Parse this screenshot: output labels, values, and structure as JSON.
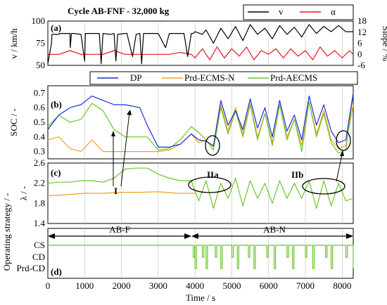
{
  "figure_title": "Cycle AB-FNF - 32,000 kg",
  "xlabel": "Time / s",
  "colors": {
    "v": "#000000",
    "alpha": "#e8141e",
    "dp": "#1c2fd6",
    "ecms": "#f0a21b",
    "aecms": "#6cc42a"
  },
  "chart_data": [
    {
      "panel": "(a)",
      "type": "line",
      "xlim": [
        0,
        8300
      ],
      "ylim": [
        50,
        100
      ],
      "y2lim": [
        -6,
        18
      ],
      "yticks": [
        "50",
        "75",
        "100"
      ],
      "y2ticks": [
        "-6",
        "0",
        "6",
        "12",
        "18"
      ],
      "ylabel": "v / km/h",
      "y2label": "Slope / %",
      "legend": {
        "placement": "top-right",
        "entries": [
          "v",
          "α"
        ]
      },
      "series": [
        {
          "name": "v",
          "axis": "left",
          "x": [
            0,
            100,
            110,
            300,
            320,
            600,
            610,
            640,
            700,
            900,
            1000,
            1020,
            1100,
            1300,
            1400,
            1450,
            1500,
            1700,
            1800,
            1850,
            1900,
            2100,
            2150,
            2300,
            2400,
            2500,
            2550,
            2600,
            2700,
            2800,
            2900,
            3000,
            3200,
            3300,
            3500,
            3700,
            3800,
            3900,
            3950,
            4000,
            4200,
            4300,
            4500,
            4700,
            4900,
            5100,
            5300,
            5500,
            5700,
            5900,
            6100,
            6300,
            6500,
            6700,
            6900,
            7100,
            7300,
            7500,
            7700,
            7900,
            8100,
            8300
          ],
          "values": [
            52,
            75,
            85,
            85,
            86,
            86,
            70,
            86,
            86,
            85,
            55,
            86,
            86,
            86,
            86,
            52,
            86,
            85,
            86,
            55,
            85,
            86,
            86,
            60,
            85,
            86,
            52,
            86,
            86,
            86,
            86,
            86,
            70,
            86,
            86,
            86,
            60,
            86,
            86,
            88,
            85,
            90,
            75,
            92,
            80,
            94,
            78,
            96,
            85,
            92,
            80,
            95,
            85,
            93,
            82,
            96,
            86,
            94,
            88,
            95,
            88,
            88
          ]
        },
        {
          "name": "α",
          "axis": "right",
          "x": [
            0,
            300,
            600,
            900,
            1200,
            1500,
            1800,
            2100,
            2400,
            2700,
            3000,
            3300,
            3600,
            3900,
            4000,
            4200,
            4400,
            4600,
            4800,
            5000,
            5200,
            5400,
            5600,
            5800,
            6000,
            6200,
            6400,
            6600,
            6800,
            7000,
            7200,
            7400,
            7600,
            7800,
            8000,
            8200,
            8300
          ],
          "values": [
            0,
            0,
            2,
            0,
            0,
            0,
            2,
            0,
            0,
            0,
            0,
            0,
            1,
            0,
            -2,
            3,
            -3,
            4,
            -2,
            3,
            -1,
            4,
            -3,
            2,
            0,
            3,
            -2,
            3,
            -1,
            2,
            -3,
            4,
            -1,
            2,
            -2,
            2,
            0
          ]
        }
      ]
    },
    {
      "panel": "(b)",
      "type": "line",
      "xlim": [
        0,
        8300
      ],
      "ylim": [
        0.25,
        0.75
      ],
      "yticks": [
        "0.3",
        "0.4",
        "0.5",
        "0.6",
        "0.7"
      ],
      "ylabel": "SOC / -",
      "legend": {
        "placement": "top",
        "entries": [
          "DP",
          "Prd-ECMS-N",
          "Prd-AECMS"
        ]
      },
      "annotations": [
        "I"
      ],
      "series": [
        {
          "name": "DP",
          "x": [
            0,
            300,
            600,
            900,
            1200,
            1500,
            1800,
            2100,
            2500,
            2700,
            3000,
            3300,
            3600,
            3900,
            4100,
            4300,
            4500,
            4700,
            4900,
            5100,
            5300,
            5500,
            5700,
            5900,
            6100,
            6300,
            6500,
            6700,
            6900,
            7100,
            7300,
            7500,
            7700,
            7900,
            8100,
            8300
          ],
          "values": [
            0.45,
            0.55,
            0.6,
            0.62,
            0.68,
            0.65,
            0.62,
            0.62,
            0.6,
            0.48,
            0.33,
            0.33,
            0.35,
            0.42,
            0.38,
            0.37,
            0.34,
            0.65,
            0.48,
            0.58,
            0.45,
            0.66,
            0.46,
            0.6,
            0.4,
            0.65,
            0.44,
            0.55,
            0.38,
            0.68,
            0.48,
            0.62,
            0.44,
            0.36,
            0.38,
            0.7
          ]
        },
        {
          "name": "Prd-ECMS-N",
          "x": [
            0,
            300,
            600,
            900,
            1200,
            1500,
            1800,
            2100,
            2500,
            2700,
            3000,
            3300,
            3600,
            3900,
            4100,
            4300,
            4500,
            4700,
            4900,
            5100,
            5300,
            5500,
            5700,
            5900,
            6100,
            6300,
            6500,
            6700,
            6900,
            7100,
            7300,
            7500,
            7700,
            7900,
            8100,
            8300
          ],
          "values": [
            0.38,
            0.4,
            0.32,
            0.3,
            0.38,
            0.3,
            0.3,
            0.3,
            0.3,
            0.3,
            0.3,
            0.31,
            0.35,
            0.42,
            0.36,
            0.38,
            0.33,
            0.62,
            0.44,
            0.6,
            0.42,
            0.63,
            0.4,
            0.56,
            0.36,
            0.62,
            0.4,
            0.52,
            0.34,
            0.64,
            0.42,
            0.58,
            0.38,
            0.32,
            0.34,
            0.62
          ]
        },
        {
          "name": "Prd-AECMS",
          "x": [
            0,
            300,
            600,
            900,
            1200,
            1500,
            1800,
            2100,
            2500,
            2700,
            3000,
            3300,
            3600,
            3900,
            4100,
            4300,
            4500,
            4700,
            4900,
            5100,
            5300,
            5500,
            5700,
            5900,
            6100,
            6300,
            6500,
            6700,
            6900,
            7100,
            7300,
            7500,
            7700,
            7900,
            8100,
            8300
          ],
          "values": [
            0.47,
            0.55,
            0.5,
            0.52,
            0.63,
            0.58,
            0.45,
            0.4,
            0.4,
            0.4,
            0.31,
            0.32,
            0.38,
            0.47,
            0.43,
            0.38,
            0.31,
            0.6,
            0.42,
            0.58,
            0.4,
            0.62,
            0.38,
            0.56,
            0.34,
            0.62,
            0.38,
            0.52,
            0.3,
            0.64,
            0.4,
            0.56,
            0.36,
            0.29,
            0.31,
            0.7
          ]
        }
      ]
    },
    {
      "panel": "(c)",
      "type": "line",
      "xlim": [
        0,
        8300
      ],
      "ylim": [
        1.4,
        2.6
      ],
      "yticks": [
        "1.4",
        "1.8",
        "2.2",
        "2.6"
      ],
      "ylabel": "λ / -",
      "annotations": [
        "IIa",
        "IIb"
      ],
      "series": [
        {
          "name": "Prd-ECMS-N",
          "x": [
            0,
            500,
            1000,
            1500,
            2000,
            2500,
            3000,
            3500,
            4000
          ],
          "values": [
            1.95,
            1.97,
            2.0,
            2.0,
            2.02,
            2.02,
            2.03,
            2.0,
            2.0
          ]
        },
        {
          "name": "Prd-AECMS",
          "x": [
            0,
            300,
            600,
            900,
            1200,
            1500,
            1800,
            2100,
            2400,
            2700,
            3000,
            3300,
            3600,
            3900,
            4100,
            4300,
            4500,
            4700,
            4900,
            5100,
            5300,
            5500,
            5700,
            5900,
            6100,
            6300,
            6500,
            6700,
            6900,
            7100,
            7300,
            7500,
            7700,
            7900,
            8100,
            8300
          ],
          "values": [
            2.2,
            2.22,
            2.22,
            2.25,
            2.25,
            2.22,
            2.3,
            2.48,
            2.5,
            2.5,
            2.38,
            2.3,
            2.25,
            2.25,
            1.85,
            2.25,
            1.7,
            2.2,
            1.9,
            2.3,
            1.75,
            2.25,
            1.9,
            2.2,
            1.8,
            2.25,
            1.9,
            2.2,
            1.9,
            2.25,
            1.7,
            2.25,
            1.75,
            2.2,
            1.85,
            1.9
          ]
        }
      ]
    },
    {
      "panel": "(d)",
      "type": "line",
      "xlim": [
        0,
        8300
      ],
      "ylabel": "Operating strategy / -",
      "yticks": [
        "Prd-CD",
        "CD",
        "CS"
      ],
      "segments": [
        {
          "label": "AB-F",
          "from": 0,
          "to": 3900
        },
        {
          "label": "AB-N",
          "from": 3900,
          "to": 8300
        }
      ],
      "xticks": [
        "0",
        "1000",
        "2000",
        "3000",
        "4000",
        "5000",
        "6000",
        "7000",
        "8000"
      ]
    }
  ]
}
